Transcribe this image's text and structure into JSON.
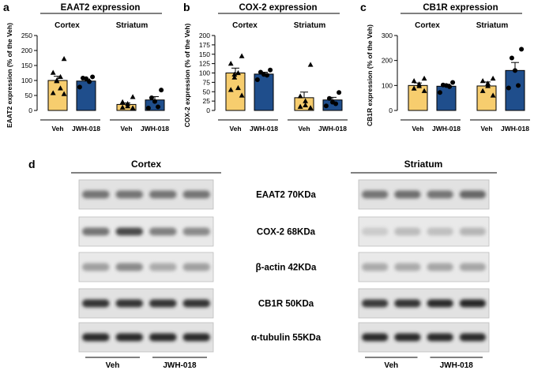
{
  "panel_letters": {
    "a": "a",
    "b": "b",
    "c": "c",
    "d": "d"
  },
  "colors": {
    "veh": "#F7CD6E",
    "jwh": "#1F4E8C",
    "axis": "#000000"
  },
  "chart_data": [
    {
      "type": "bar",
      "panel": "a",
      "title": "EAAT2 expression",
      "ylabel": "EAAT2 expression (% of the Veh)",
      "ylim": [
        0,
        250
      ],
      "yticks": [
        "0",
        "50",
        "100",
        "150",
        "200",
        "250"
      ],
      "groups": [
        "Cortex",
        "Striatum"
      ],
      "categories": [
        "Veh",
        "JWH-018",
        "Veh",
        "JWH-018"
      ],
      "bars": [
        {
          "group": "Cortex",
          "category": "Veh",
          "value": 100,
          "sem": 14,
          "marker": "triangle",
          "points": [
            172,
            126,
            112,
            100,
            98,
            74,
            58,
            55
          ]
        },
        {
          "group": "Cortex",
          "category": "JWH-018",
          "value": 98,
          "sem": 7,
          "marker": "circle",
          "points": [
            112,
            108,
            106,
            96,
            78
          ]
        },
        {
          "group": "Striatum",
          "category": "Veh",
          "value": 20,
          "sem": 5,
          "marker": "triangle",
          "points": [
            45,
            28,
            22,
            14,
            10,
            8
          ]
        },
        {
          "group": "Striatum",
          "category": "JWH-018",
          "value": 35,
          "sem": 11,
          "marker": "circle",
          "points": [
            68,
            42,
            30,
            12,
            8
          ]
        }
      ]
    },
    {
      "type": "bar",
      "panel": "b",
      "title": "COX-2 expression",
      "ylabel": "COX-2 expression (% of the Veh)",
      "ylim": [
        0,
        200
      ],
      "yticks": [
        "0",
        "25",
        "50",
        "75",
        "100",
        "125",
        "150",
        "175",
        "200"
      ],
      "groups": [
        "Cortex",
        "Striatum"
      ],
      "categories": [
        "Veh",
        "JWH-018",
        "Veh",
        "JWH-018"
      ],
      "bars": [
        {
          "group": "Cortex",
          "category": "Veh",
          "value": 100,
          "sem": 13,
          "marker": "triangle",
          "points": [
            145,
            125,
            100,
            96,
            88,
            60,
            55,
            40
          ]
        },
        {
          "group": "Cortex",
          "category": "JWH-018",
          "value": 97,
          "sem": 5,
          "marker": "circle",
          "points": [
            108,
            102,
            96,
            94,
            82
          ]
        },
        {
          "group": "Striatum",
          "category": "Veh",
          "value": 34,
          "sem": 15,
          "marker": "triangle",
          "points": [
            122,
            38,
            25,
            14,
            10,
            7
          ]
        },
        {
          "group": "Striatum",
          "category": "JWH-018",
          "value": 28,
          "sem": 7,
          "marker": "circle",
          "points": [
            48,
            32,
            22,
            18,
            12
          ]
        }
      ]
    },
    {
      "type": "bar",
      "panel": "c",
      "title": "CB1R expression",
      "ylabel": "CB1R expression (% of the Veh)",
      "ylim": [
        0,
        300
      ],
      "yticks": [
        "0",
        "100",
        "200",
        "300"
      ],
      "groups": [
        "Cortex",
        "Striatum"
      ],
      "categories": [
        "Veh",
        "JWH-018",
        "Veh",
        "JWH-018"
      ],
      "bars": [
        {
          "group": "Cortex",
          "category": "Veh",
          "value": 100,
          "sem": 10,
          "marker": "triangle",
          "points": [
            128,
            118,
            105,
            98,
            88,
            78
          ]
        },
        {
          "group": "Cortex",
          "category": "JWH-018",
          "value": 97,
          "sem": 8,
          "marker": "circle",
          "points": [
            112,
            102,
            100,
            95,
            72
          ]
        },
        {
          "group": "Striatum",
          "category": "Veh",
          "value": 98,
          "sem": 16,
          "marker": "triangle",
          "points": [
            128,
            118,
            108,
            98,
            78,
            60
          ]
        },
        {
          "group": "Striatum",
          "category": "JWH-018",
          "value": 160,
          "sem": 32,
          "marker": "circle",
          "points": [
            245,
            210,
            160,
            100,
            90
          ]
        }
      ]
    }
  ],
  "western_blot": {
    "groups": [
      "Cortex",
      "Striatum"
    ],
    "conditions": [
      "Veh",
      "JWH-018"
    ],
    "bands": [
      {
        "label": "EAAT2 70KDa"
      },
      {
        "label": "COX-2 68KDa"
      },
      {
        "label": "β-actin 42KDa"
      },
      {
        "label": "CB1R 50KDa"
      },
      {
        "label": "α-tubulin 55KDa"
      }
    ]
  }
}
